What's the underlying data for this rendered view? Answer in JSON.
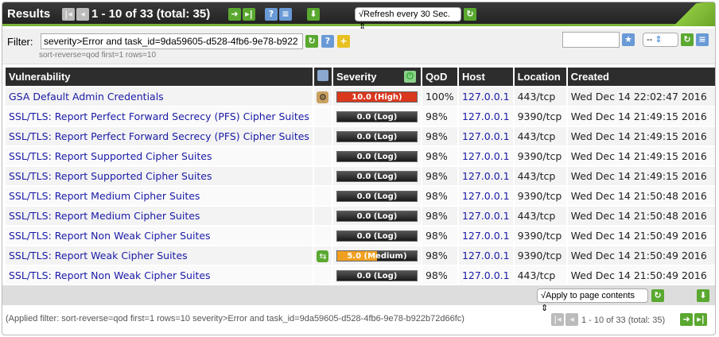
{
  "header": {
    "title": "Results",
    "pagination": "1 - 10 of 33 (total: 35)",
    "refresh_select": "√Refresh every 30 Sec."
  },
  "filter": {
    "label": "Filter:",
    "value": "severity>Error and task_id=9da59605-d528-4fb6-9e78-b922",
    "sub": "sort-reverse=qod first=1 rows=10",
    "select_value": "--",
    "name_input": ""
  },
  "columns": [
    "Vulnerability",
    "Severity",
    "QoD",
    "Host",
    "Location",
    "Created"
  ],
  "colors": {
    "high": "#d9381e",
    "medium": "#f0a020",
    "log": "#222222",
    "accent": "#7ab23a"
  },
  "rows": [
    {
      "name": "GSA Default Admin Credentials",
      "icon": "wrench-icon",
      "severity": "10.0 (High)",
      "level": "high",
      "score": 10.0,
      "qod": "100%",
      "host": "127.0.0.1",
      "location": "443/tcp",
      "created": "Wed Dec 14 22:02:47 2016"
    },
    {
      "name": "SSL/TLS: Report Perfect Forward Secrecy (PFS) Cipher Suites",
      "icon": "",
      "severity": "0.0 (Log)",
      "level": "log",
      "score": 0,
      "qod": "98%",
      "host": "127.0.0.1",
      "location": "9390/tcp",
      "created": "Wed Dec 14 21:49:15 2016"
    },
    {
      "name": "SSL/TLS: Report Perfect Forward Secrecy (PFS) Cipher Suites",
      "icon": "",
      "severity": "0.0 (Log)",
      "level": "log",
      "score": 0,
      "qod": "98%",
      "host": "127.0.0.1",
      "location": "443/tcp",
      "created": "Wed Dec 14 21:49:15 2016"
    },
    {
      "name": "SSL/TLS: Report Supported Cipher Suites",
      "icon": "",
      "severity": "0.0 (Log)",
      "level": "log",
      "score": 0,
      "qod": "98%",
      "host": "127.0.0.1",
      "location": "9390/tcp",
      "created": "Wed Dec 14 21:49:15 2016"
    },
    {
      "name": "SSL/TLS: Report Supported Cipher Suites",
      "icon": "",
      "severity": "0.0 (Log)",
      "level": "log",
      "score": 0,
      "qod": "98%",
      "host": "127.0.0.1",
      "location": "443/tcp",
      "created": "Wed Dec 14 21:49:15 2016"
    },
    {
      "name": "SSL/TLS: Report Medium Cipher Suites",
      "icon": "",
      "severity": "0.0 (Log)",
      "level": "log",
      "score": 0,
      "qod": "98%",
      "host": "127.0.0.1",
      "location": "9390/tcp",
      "created": "Wed Dec 14 21:50:48 2016"
    },
    {
      "name": "SSL/TLS: Report Medium Cipher Suites",
      "icon": "",
      "severity": "0.0 (Log)",
      "level": "log",
      "score": 0,
      "qod": "98%",
      "host": "127.0.0.1",
      "location": "443/tcp",
      "created": "Wed Dec 14 21:50:48 2016"
    },
    {
      "name": "SSL/TLS: Report Non Weak Cipher Suites",
      "icon": "",
      "severity": "0.0 (Log)",
      "level": "log",
      "score": 0,
      "qod": "98%",
      "host": "127.0.0.1",
      "location": "9390/tcp",
      "created": "Wed Dec 14 21:50:49 2016"
    },
    {
      "name": "SSL/TLS: Report Weak Cipher Suites",
      "icon": "vendorfix-icon",
      "severity": "5.0 (Medium)",
      "level": "medium",
      "score": 5.0,
      "qod": "98%",
      "host": "127.0.0.1",
      "location": "9390/tcp",
      "created": "Wed Dec 14 21:50:49 2016"
    },
    {
      "name": "SSL/TLS: Report Non Weak Cipher Suites",
      "icon": "",
      "severity": "0.0 (Log)",
      "level": "log",
      "score": 0,
      "qod": "98%",
      "host": "127.0.0.1",
      "location": "443/tcp",
      "created": "Wed Dec 14 21:50:49 2016"
    }
  ],
  "footer": {
    "apply_select": "√Apply to page contents",
    "applied_filter": "(Applied filter: sort-reverse=qod first=1 rows=10 severity>Error and task_id=9da59605-d528-4fb6-9e78-b922b72d66fc)",
    "pagination": "1 - 10 of 33 (total: 35)"
  }
}
